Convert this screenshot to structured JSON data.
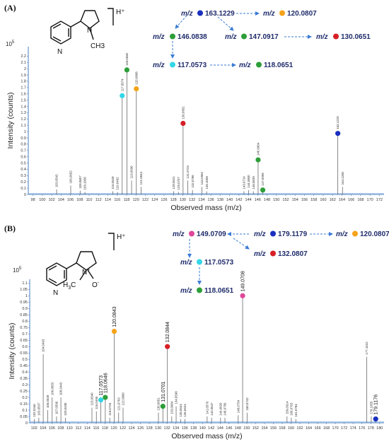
{
  "panels": [
    {
      "label": "(A)",
      "exponent": "10",
      "exponent_power": "5",
      "ion_charge": "H⁺",
      "structure": {
        "methyl": "CH3",
        "nitrogen": "N"
      },
      "pathway": [
        {
          "prefix": "m/z",
          "value": "163.1229",
          "color": "#1a2fbf"
        },
        {
          "prefix": "m/z",
          "value": "120.0807",
          "color": "#f5a31a"
        },
        {
          "prefix": "m/z",
          "value": "146.0838",
          "color": "#2e9e3a"
        },
        {
          "prefix": "m/z",
          "value": "147.0917",
          "color": "#2e9e3a"
        },
        {
          "prefix": "m/z",
          "value": "130.0651",
          "color": "#d61f26"
        },
        {
          "prefix": "m/z",
          "value": "117.0573",
          "color": "#33d6e6"
        },
        {
          "prefix": "m/z",
          "value": "118.0651",
          "color": "#2e9e3a"
        }
      ],
      "chart_data": {
        "type": "bar",
        "xlabel": "Observed mass (m/z)",
        "ylabel": "Intensity (counts)",
        "xlim": [
          97,
          173
        ],
        "ylim": [
          0,
          2.35
        ],
        "xticks": [
          98,
          100,
          102,
          104,
          106,
          108,
          110,
          112,
          114,
          116,
          118,
          120,
          122,
          124,
          126,
          128,
          130,
          132,
          134,
          136,
          138,
          140,
          142,
          144,
          146,
          148,
          150,
          152,
          154,
          156,
          158,
          160,
          162,
          164,
          166,
          168,
          170,
          172
        ],
        "yticks": [
          0,
          0.1,
          0.2,
          0.3,
          0.4,
          0.5,
          0.6,
          0.7,
          0.8,
          0.9,
          1,
          1.1,
          1.2,
          1.3,
          1.4,
          1.5,
          1.6,
          1.7,
          1.8,
          1.9,
          2,
          2.1,
          2.2
        ],
        "ytick_labels": [
          "0",
          "0.1",
          "0.2",
          "0.3",
          "0.4",
          "0.5",
          "0.6",
          "0.7",
          "0.8",
          "0.9",
          "1",
          "1.1",
          "1.2",
          "1.3",
          "1.4",
          "1.5",
          "1.6",
          "1.7",
          "1.8",
          "1.9",
          "2",
          "2.1",
          "2.2"
        ],
        "peaks": [
          {
            "mz": 103.0543,
            "y": 0.08,
            "label": "103.0543"
          },
          {
            "mz": 106.0652,
            "y": 0.14,
            "label": "106.0652"
          },
          {
            "mz": 108.0807,
            "y": 0.06,
            "label": "108.0807"
          },
          {
            "mz": 109.1006,
            "y": 0.04,
            "label": "109.1006"
          },
          {
            "mz": 115.0539,
            "y": 0.05,
            "label": "115.0539"
          },
          {
            "mz": 116.0492,
            "y": 0.04,
            "label": "116.0492"
          },
          {
            "mz": 117.0574,
            "y": 1.57,
            "label": "117.0574",
            "marker": "#33d6e6"
          },
          {
            "mz": 118.065,
            "y": 1.98,
            "label": "118.0650",
            "marker": "#2e9e3a"
          },
          {
            "mz": 119.069,
            "y": 0.22,
            "label": "119.0690"
          },
          {
            "mz": 120.0808,
            "y": 1.68,
            "label": "120.0808",
            "marker": "#f5a31a"
          },
          {
            "mz": 121.0844,
            "y": 0.12,
            "label": "121.0844"
          },
          {
            "mz": 128.0621,
            "y": 0.05,
            "label": "128.0621"
          },
          {
            "mz": 129.0707,
            "y": 0.04,
            "label": "129.0707"
          },
          {
            "mz": 130.0651,
            "y": 1.13,
            "label": "130.0651",
            "marker": "#d61f26"
          },
          {
            "mz": 131.0723,
            "y": 0.22,
            "label": "131.0723"
          },
          {
            "mz": 132.0786,
            "y": 0.07,
            "label": "132.0786"
          },
          {
            "mz": 134.0962,
            "y": 0.12,
            "label": "134.0962"
          },
          {
            "mz": 135.1008,
            "y": 0.05,
            "label": "135.1008"
          },
          {
            "mz": 143.0724,
            "y": 0.05,
            "label": "143.0724"
          },
          {
            "mz": 144.08,
            "y": 0.07,
            "label": "144.0800"
          },
          {
            "mz": 145.0839,
            "y": 0.05,
            "label": "145.0839"
          },
          {
            "mz": 146.0964,
            "y": 0.55,
            "label": "146.0964",
            "marker": "#2e9e3a"
          },
          {
            "mz": 147.0999,
            "y": 0.07,
            "label": "147.0999",
            "marker": "#2e9e3a"
          },
          {
            "mz": 163.1229,
            "y": 0.97,
            "label": "163.1229",
            "marker": "#1a2fbf"
          },
          {
            "mz": 164.126,
            "y": 0.12,
            "label": "164.1260"
          }
        ]
      }
    },
    {
      "label": "(B)",
      "exponent": "10",
      "exponent_power": "5",
      "ion_charge": "H⁺",
      "structure": {
        "methyl": "H3C",
        "nitrogen": "N+",
        "oxide": "O-"
      },
      "pathway": [
        {
          "prefix": "m/z",
          "value": "149.0709",
          "color": "#e0479a"
        },
        {
          "prefix": "m/z",
          "value": "179.1179",
          "color": "#1a2fbf"
        },
        {
          "prefix": "m/z",
          "value": "120.0807",
          "color": "#f5a31a"
        },
        {
          "prefix": "m/z",
          "value": "132.0807",
          "color": "#d61f26"
        },
        {
          "prefix": "m/z",
          "value": "117.0573",
          "color": "#33d6e6"
        },
        {
          "prefix": "m/z",
          "value": "118.0651",
          "color": "#2e9e3a"
        }
      ],
      "chart_data": {
        "type": "bar",
        "xlabel": "Observed mass (m/z)",
        "ylabel": "Intensity (counts)",
        "xlim": [
          101,
          181
        ],
        "ylim": [
          0,
          1.13
        ],
        "xticks": [
          102,
          104,
          106,
          108,
          110,
          112,
          114,
          116,
          118,
          120,
          122,
          124,
          126,
          128,
          130,
          132,
          134,
          136,
          138,
          140,
          142,
          144,
          146,
          148,
          150,
          152,
          154,
          156,
          158,
          160,
          162,
          164,
          166,
          168,
          170,
          172,
          174,
          176,
          178,
          180
        ],
        "yticks": [
          0,
          0.05,
          0.1,
          0.15,
          0.2,
          0.25,
          0.3,
          0.35,
          0.4,
          0.45,
          0.5,
          0.55,
          0.6,
          0.65,
          0.7,
          0.75,
          0.8,
          0.85,
          0.9,
          0.95,
          1,
          1.05,
          1.1
        ],
        "ytick_labels": [
          "0",
          "0.05",
          "0.1",
          "0.15",
          "0.2",
          "0.25",
          "0.3",
          "0.35",
          "0.4",
          "0.45",
          "0.5",
          "0.55",
          "0.6",
          "0.65",
          "0.7",
          "0.75",
          "0.8",
          "0.85",
          "0.9",
          "0.95",
          "1",
          "1.05",
          "1.1"
        ],
        "peaks": [
          {
            "mz": 102.0346,
            "y": 0.03,
            "label": "102.0346"
          },
          {
            "mz": 103.0537,
            "y": 0.04,
            "label": "103.0537"
          },
          {
            "mz": 104.0493,
            "y": 0.54,
            "label": "104.0493"
          },
          {
            "mz": 105.0528,
            "y": 0.1,
            "label": "105.0528"
          },
          {
            "mz": 106.0653,
            "y": 0.2,
            "label": "106.0653"
          },
          {
            "mz": 107.059,
            "y": 0.05,
            "label": "107.0590"
          },
          {
            "mz": 108.0443,
            "y": 0.2,
            "label": "108.0443"
          },
          {
            "mz": 109.049,
            "y": 0.04,
            "label": "109.0490"
          },
          {
            "mz": 115.054,
            "y": 0.12,
            "label": "115.0540"
          },
          {
            "mz": 116.0495,
            "y": 0.09,
            "label": "116.0495"
          },
          {
            "mz": 117.0573,
            "y": 0.18,
            "label": "117.0573",
            "marker": "#33d6e6",
            "big": true
          },
          {
            "mz": 118.0646,
            "y": 0.2,
            "label": "118.0646",
            "marker": "#2e9e3a",
            "big": true
          },
          {
            "mz": 119.0726,
            "y": 0.04,
            "label": "119.0726"
          },
          {
            "mz": 120.0843,
            "y": 0.72,
            "label": "120.0843",
            "marker": "#f5a31a",
            "big": true
          },
          {
            "mz": 121.0763,
            "y": 0.08,
            "label": "121.0763"
          },
          {
            "mz": 122.08,
            "y": 0.12,
            "label": "122.0800"
          },
          {
            "mz": 130.0651,
            "y": 0.08,
            "label": "130.0651"
          },
          {
            "mz": 131.0701,
            "y": 0.13,
            "label": "131.0701",
            "marker": "#2e9e3a",
            "big": true
          },
          {
            "mz": 132.0844,
            "y": 0.6,
            "label": "132.0844",
            "marker": "#d61f26",
            "big": true
          },
          {
            "mz": 133.0684,
            "y": 0.05,
            "label": "133.0684"
          },
          {
            "mz": 134.0598,
            "y": 0.13,
            "label": "134.0598"
          },
          {
            "mz": 135.0624,
            "y": 0.03,
            "label": "135.0624"
          },
          {
            "mz": 136.0624,
            "y": 0.03,
            "label": "136.0624"
          },
          {
            "mz": 141.0576,
            "y": 0.05,
            "label": "141.0576"
          },
          {
            "mz": 142.0647,
            "y": 0.04,
            "label": "142.0647"
          },
          {
            "mz": 144.082,
            "y": 0.04,
            "label": "144.0820"
          },
          {
            "mz": 145.0756,
            "y": 0.04,
            "label": "145.0756"
          },
          {
            "mz": 148.0754,
            "y": 0.06,
            "label": "148.0754"
          },
          {
            "mz": 149.0708,
            "y": 1.0,
            "label": "149.0708",
            "marker": "#e0479a",
            "big": true
          },
          {
            "mz": 150.0742,
            "y": 0.08,
            "label": "150.0742"
          },
          {
            "mz": 159.0914,
            "y": 0.05,
            "label": "159.0914"
          },
          {
            "mz": 160.0703,
            "y": 0.04,
            "label": "160.0703"
          },
          {
            "mz": 161.0784,
            "y": 0.03,
            "label": "161.0784"
          },
          {
            "mz": 177.1022,
            "y": 0.52,
            "label": "177.1022"
          },
          {
            "mz": 178.1055,
            "y": 0.05,
            "label": "178.1055"
          },
          {
            "mz": 179.1176,
            "y": 0.03,
            "label": "179.1176",
            "marker": "#1a2fbf",
            "big": true
          }
        ]
      }
    }
  ]
}
